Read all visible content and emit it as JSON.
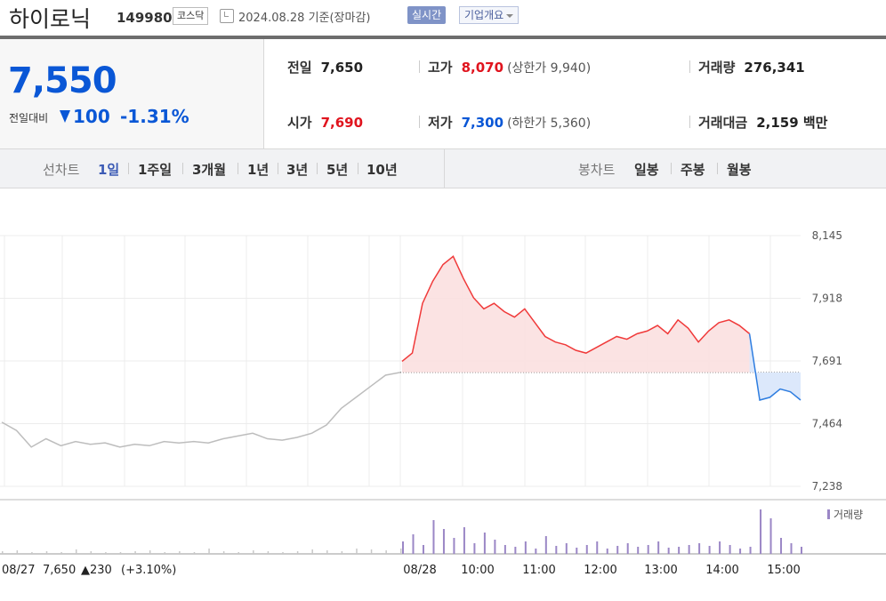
{
  "header": {
    "name": "하이로닉",
    "code": "149980",
    "market": "코스닥",
    "date": "2024.08.28 기준(장마감)",
    "realtime_btn": "실시간",
    "company_btn": "기업개요"
  },
  "quote": {
    "price": "7,550",
    "change_label": "전일대비",
    "change_amount": "100",
    "change_rate": "-1.31%",
    "prev_label": "전일",
    "prev_value": "7,650",
    "high_label": "고가",
    "high_value": "8,070",
    "upper_limit": "(상한가 9,940)",
    "volume_label": "거래량",
    "volume_value": "276,341",
    "open_label": "시가",
    "open_value": "7,690",
    "low_label": "저가",
    "low_value": "7,300",
    "lower_limit": "(하한가 5,360)",
    "amount_label": "거래대금",
    "amount_value": "2,159 백만"
  },
  "periods": {
    "line_label": "선차트",
    "line_items": [
      "1일",
      "1주일",
      "3개월",
      "1년",
      "3년",
      "5년",
      "10년"
    ],
    "candle_label": "봉차트",
    "candle_items": [
      "일봉",
      "주봉",
      "월봉"
    ]
  },
  "chart_data": {
    "type": "line",
    "y_ticks": [
      "8,145",
      "7,918",
      "7,691",
      "7,464",
      "7,238"
    ],
    "ylim": [
      7238,
      8145
    ],
    "x_ticks": [
      "08/28",
      "10:00",
      "11:00",
      "12:00",
      "13:00",
      "14:00",
      "15:00"
    ],
    "reference_price": 7650,
    "prev_day_summary": {
      "date": "08/27",
      "close": "7,650",
      "change": "▲230",
      "rate": "(+3.10%)"
    },
    "volume_legend": "거래량",
    "series": [
      {
        "values": [
          7470,
          7440,
          7380,
          7410,
          7385,
          7400,
          7390,
          7395,
          7380,
          7390,
          7385,
          7400,
          7395,
          7400,
          7395,
          7410,
          7420,
          7430,
          7410,
          7405,
          7415,
          7430,
          7460,
          7520,
          7560,
          7600,
          7640,
          7650
        ]
      },
      {
        "values": [
          7690,
          7720,
          7900,
          7980,
          8040,
          8070,
          7990,
          7920,
          7880,
          7900,
          7870,
          7850,
          7880,
          7830,
          7780,
          7760,
          7750,
          7730,
          7720,
          7740,
          7760,
          7780,
          7770,
          7790,
          7800,
          7820,
          7790,
          7840,
          7810,
          7760,
          7800,
          7830,
          7840,
          7820,
          7790,
          7550,
          7560,
          7590,
          7580,
          7550
        ]
      }
    ]
  }
}
